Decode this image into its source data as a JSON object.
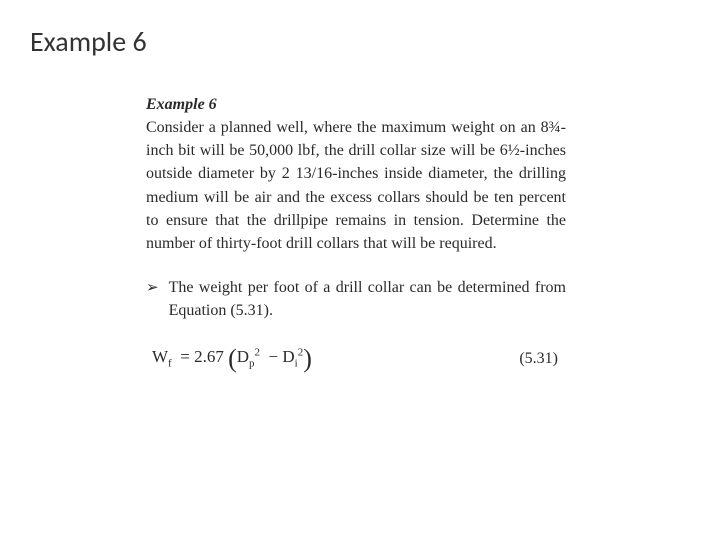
{
  "slide": {
    "title": "Example 6"
  },
  "example": {
    "heading": "Example 6",
    "paragraph": "Consider a planned well, where the maximum weight on an 8¾-inch bit will be 50,000 lbf, the drill collar size will be 6½-inches outside diameter by 2 13/16-inches inside diameter, the drilling medium will be air and the excess collars should be ten percent to ensure that the drillpipe remains in tension. Determine the number of thirty-foot drill collars that will be required.",
    "bullet_marker": "➢",
    "bullet_text": "The weight per foot of a drill collar can be determined from Equation (5.31).",
    "equation": {
      "lhs_var": "W",
      "lhs_sub": "f",
      "coeff": "2.67",
      "term1_var": "D",
      "term1_sub": "p",
      "term1_sup": "2",
      "term2_var": "D",
      "term2_sub": "i",
      "term2_sup": "2",
      "number": "(5.31)"
    }
  },
  "style": {
    "text_color": "#2a2a2a",
    "background": "#ffffff",
    "body_fontsize": 16,
    "title_fontsize": 28
  }
}
